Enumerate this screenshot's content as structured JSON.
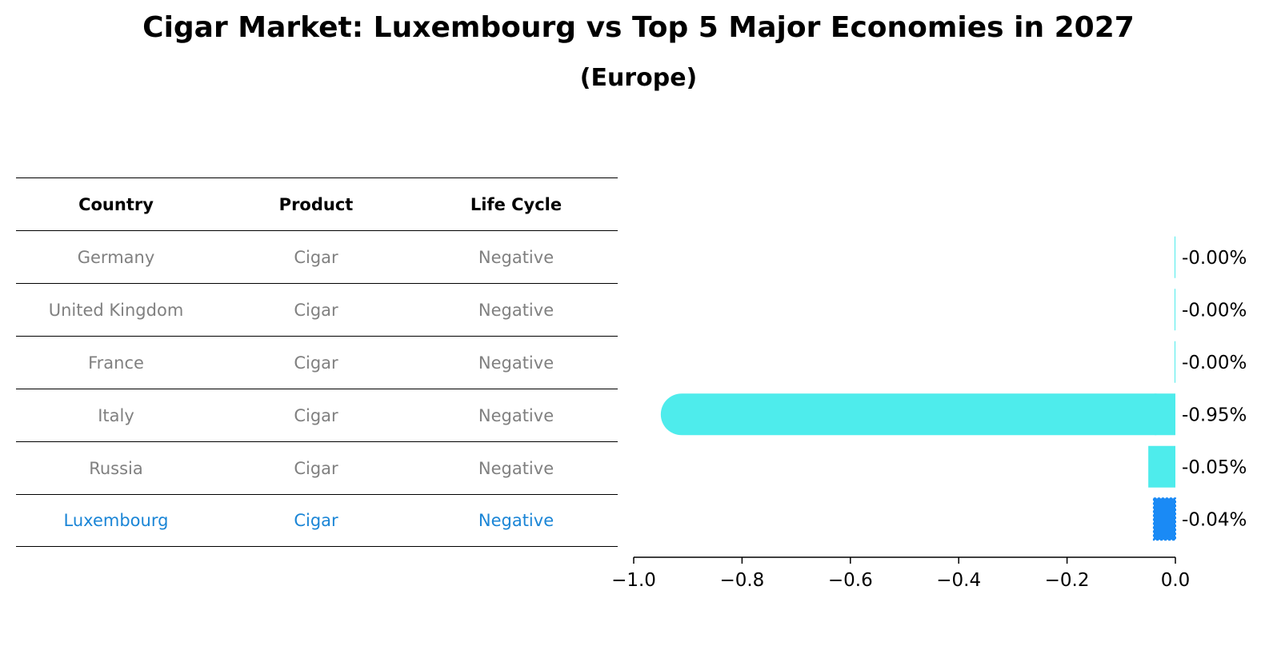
{
  "title": "Cigar Market: Luxembourg vs Top 5 Major Economies in 2027",
  "subtitle": "(Europe)",
  "table": {
    "headers": [
      "Country",
      "Product",
      "Life Cycle"
    ],
    "rows": [
      [
        "Germany",
        "Cigar",
        "Negative"
      ],
      [
        "United Kingdom",
        "Cigar",
        "Negative"
      ],
      [
        "France",
        "Cigar",
        "Negative"
      ],
      [
        "Italy",
        "Cigar",
        "Negative"
      ],
      [
        "Russia",
        "Cigar",
        "Negative"
      ],
      [
        "Luxembourg",
        "Cigar",
        "Negative"
      ]
    ],
    "highlight_row": 5,
    "highlight_color": "#1a85d6",
    "text_color": "#808080"
  },
  "chart_data": {
    "type": "bar",
    "orientation": "horizontal",
    "categories": [
      "Germany",
      "United Kingdom",
      "France",
      "Italy",
      "Russia",
      "Luxembourg"
    ],
    "values": [
      -0.0,
      -0.0,
      -0.0,
      -0.95,
      -0.05,
      -0.04
    ],
    "value_labels": [
      "-0.00%",
      "-0.00%",
      "-0.00%",
      "-0.95%",
      "-0.05%",
      "-0.04%"
    ],
    "xlim": [
      -1.0,
      0.0
    ],
    "xticks": [
      -1.0,
      -0.8,
      -0.6,
      -0.4,
      -0.2,
      0.0
    ],
    "xtick_labels": [
      "−1.0",
      "−0.8",
      "−0.6",
      "−0.4",
      "−0.2",
      "0.0"
    ],
    "bar_color": "#4eecec",
    "highlight_color": "#1a8af5",
    "highlight_index": 5,
    "grid": false,
    "xlabel": "",
    "ylabel": ""
  }
}
